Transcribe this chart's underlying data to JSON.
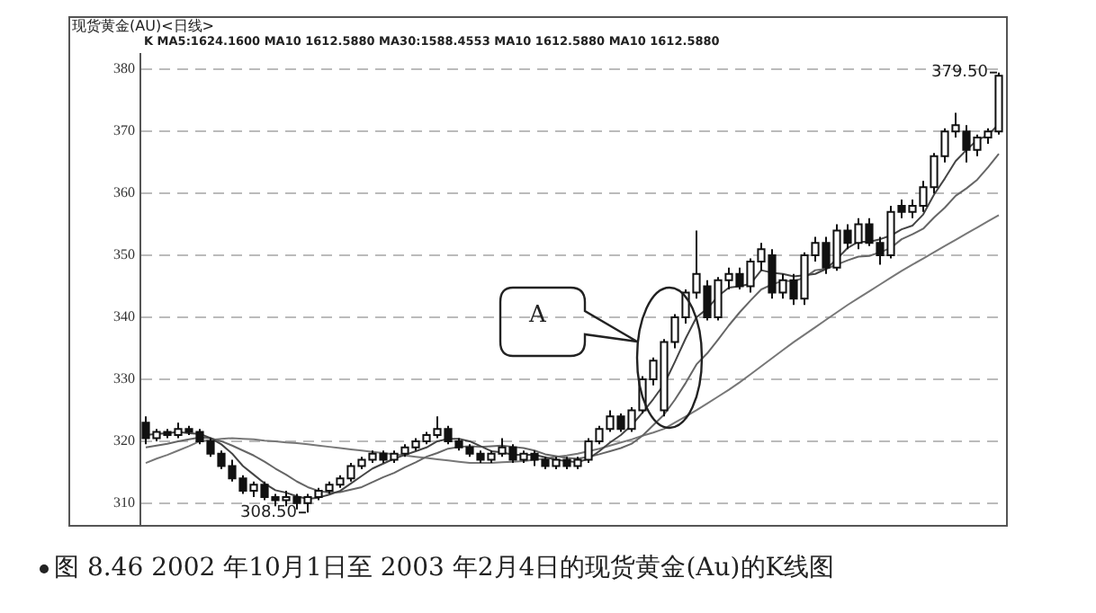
{
  "chart_data": {
    "type": "candlestick",
    "title": "现货黄金(AU)<日线>",
    "categories": [
      null,
      null,
      null,
      null,
      null,
      null,
      null,
      null,
      null,
      null,
      null,
      null,
      null,
      null,
      null,
      null,
      null,
      null,
      null,
      null,
      null,
      null,
      null,
      null,
      null,
      null,
      null,
      null,
      null,
      null,
      null,
      null,
      null,
      null,
      null,
      null,
      null,
      null,
      null,
      null,
      null,
      null,
      null,
      null,
      null,
      null,
      null,
      null,
      null,
      null,
      null,
      null,
      null,
      null,
      null,
      null,
      null,
      null,
      null,
      null,
      null,
      null,
      null,
      null,
      null,
      null,
      null,
      null,
      null,
      null,
      null,
      null,
      null,
      null,
      null,
      null,
      null,
      null,
      null,
      null
    ],
    "ohlc": [
      [
        323,
        324,
        319.5,
        320.5
      ],
      [
        320.5,
        322,
        320,
        321.5
      ],
      [
        321.5,
        322,
        320.5,
        321
      ],
      [
        321,
        323,
        320.5,
        322
      ],
      [
        322,
        322.5,
        321,
        321.5
      ],
      [
        321.5,
        322,
        319.5,
        320
      ],
      [
        320,
        320.5,
        317.5,
        318
      ],
      [
        318,
        318.5,
        315.5,
        316
      ],
      [
        316,
        317,
        313.5,
        314
      ],
      [
        314,
        314.5,
        311.5,
        312
      ],
      [
        312,
        313.5,
        311,
        313
      ],
      [
        313,
        313.5,
        310.5,
        311
      ],
      [
        311,
        311.5,
        309.5,
        310.5
      ],
      [
        310.5,
        312,
        309.5,
        311
      ],
      [
        311,
        311.5,
        309,
        310
      ],
      [
        310,
        311.5,
        308.5,
        311
      ],
      [
        311,
        312.5,
        310.5,
        312
      ],
      [
        312,
        313.5,
        311.5,
        313
      ],
      [
        313,
        314.5,
        312.5,
        314
      ],
      [
        314,
        316.5,
        313.5,
        316
      ],
      [
        316,
        317.5,
        315.5,
        317
      ],
      [
        317,
        318.5,
        316.5,
        318
      ],
      [
        318,
        318.5,
        316.5,
        317
      ],
      [
        317,
        318.5,
        316.5,
        318
      ],
      [
        318,
        319.5,
        317.5,
        319
      ],
      [
        319,
        320.5,
        318.5,
        320
      ],
      [
        320,
        321.5,
        319.5,
        321
      ],
      [
        321,
        324,
        320.5,
        322
      ],
      [
        322,
        322.5,
        319.5,
        320
      ],
      [
        320,
        320.5,
        318.5,
        319
      ],
      [
        319,
        319.5,
        317.5,
        318
      ],
      [
        318,
        318.5,
        316.5,
        317
      ],
      [
        317,
        318.5,
        316.5,
        318
      ],
      [
        318,
        320.5,
        317.5,
        319
      ],
      [
        319,
        319.5,
        316.5,
        317
      ],
      [
        317,
        318.5,
        316.5,
        318
      ],
      [
        318,
        318.5,
        316,
        317
      ],
      [
        317,
        317.5,
        315.5,
        316
      ],
      [
        316,
        317.5,
        315.5,
        317
      ],
      [
        317,
        317.5,
        315.5,
        316
      ],
      [
        316,
        317.5,
        315.5,
        317
      ],
      [
        317,
        320.5,
        316.5,
        320
      ],
      [
        320,
        322.5,
        319.5,
        322
      ],
      [
        322,
        325,
        321.5,
        324
      ],
      [
        324,
        324.5,
        321.5,
        322
      ],
      [
        322,
        325.5,
        321.5,
        325
      ],
      [
        325,
        330.5,
        324.5,
        330
      ],
      [
        330,
        333.5,
        329,
        333
      ],
      [
        325,
        336.5,
        324,
        336
      ],
      [
        336,
        340.5,
        335,
        340
      ],
      [
        340,
        344.5,
        339,
        344
      ],
      [
        344,
        354,
        343,
        347
      ],
      [
        345,
        346,
        339.5,
        340
      ],
      [
        340,
        346.5,
        339.5,
        346
      ],
      [
        346,
        348,
        344.5,
        347
      ],
      [
        347,
        348,
        344.5,
        345
      ],
      [
        345,
        349.5,
        344,
        349
      ],
      [
        349,
        352,
        347.5,
        351
      ],
      [
        350,
        351,
        343,
        344
      ],
      [
        344,
        347,
        343,
        346
      ],
      [
        346,
        347,
        342,
        343
      ],
      [
        343,
        350.5,
        342,
        350
      ],
      [
        350,
        353,
        349,
        352
      ],
      [
        352,
        353,
        347,
        348
      ],
      [
        348,
        355,
        347.5,
        354
      ],
      [
        354,
        355,
        351,
        352
      ],
      [
        352,
        356,
        351,
        355
      ],
      [
        355,
        356,
        351.5,
        352
      ],
      [
        352,
        353,
        348.5,
        350
      ],
      [
        350,
        358,
        349.5,
        357
      ],
      [
        358,
        359,
        356,
        357
      ],
      [
        357,
        359,
        356,
        358
      ],
      [
        358,
        362,
        357,
        361
      ],
      [
        361,
        366.5,
        360,
        366
      ],
      [
        366,
        370.5,
        365,
        370
      ],
      [
        370,
        373,
        369,
        371
      ],
      [
        370,
        371,
        365,
        367
      ],
      [
        367,
        369.5,
        366,
        369
      ],
      [
        369,
        370.5,
        368,
        370
      ],
      [
        370,
        379.5,
        369.5,
        379
      ]
    ],
    "series": [
      {
        "type": "line",
        "color": "#444444",
        "values": [
          321,
          321.2,
          321.3,
          321.5,
          321.3,
          321.2,
          320.5,
          319.5,
          318,
          316,
          314.6,
          313.2,
          312.1,
          311.7,
          311.1,
          310.7,
          310.9,
          311.4,
          312,
          313.2,
          314.4,
          315.6,
          316.4,
          317.2,
          317.8,
          318.4,
          319,
          320,
          320.4,
          320.4,
          320,
          319.2,
          318.4,
          318.2,
          317.8,
          317.8,
          317.8,
          317.4,
          317,
          316.8,
          316.6,
          317.2,
          318.4,
          319.8,
          321,
          322.6,
          324.6,
          326.8,
          329.2,
          332.8,
          336.6,
          340,
          341.4,
          343.4,
          344.8,
          345,
          345.4,
          347.6,
          347.2,
          347,
          346.6,
          346.8,
          347,
          347.8,
          349.4,
          351.2,
          352.2,
          352.2,
          352.6,
          353.2,
          354.2,
          354.8,
          356.6,
          359.8,
          362.4,
          365.2,
          367,
          368.6,
          369.4,
          371.2
        ]
      },
      {
        "type": "line",
        "color": "#666666",
        "values": [
          319,
          319.3,
          319.6,
          320,
          320.3,
          320.6,
          320.5,
          320,
          319.3,
          318.5,
          317.7,
          316.7,
          315.6,
          314.6,
          313.5,
          312.6,
          312,
          311.7,
          311.8,
          312.2,
          312.6,
          313.4,
          314.2,
          314.9,
          315.8,
          316.6,
          317.5,
          318.1,
          318.8,
          319.1,
          319.2,
          319.1,
          319.2,
          319.3,
          319.1,
          318.9,
          318.5,
          317.9,
          317.6,
          317.3,
          317.2,
          317.5,
          317.9,
          318.4,
          318.9,
          319.6,
          320.9,
          322.6,
          324.3,
          326.7,
          329.4,
          332.4,
          334.2,
          336.4,
          338.7,
          340.8,
          342.7,
          344.5,
          345.3,
          345.9,
          345.8,
          346.4,
          347.6,
          347.8,
          348.5,
          349.2,
          349.8,
          349.9,
          350.5,
          351.2,
          352.6,
          353.4,
          354.3,
          356.1,
          357.7,
          359.6,
          360.8,
          362.2,
          364.2,
          366.4
        ]
      },
      {
        "type": "line",
        "color": "#777777",
        "values": [
          316.5,
          317.2,
          317.8,
          318.5,
          319.2,
          320,
          320.2,
          320.4,
          320.5,
          320.4,
          320.3,
          320.1,
          320,
          319.8,
          319.7,
          319.5,
          319.3,
          319.1,
          318.9,
          318.7,
          318.5,
          318.3,
          318.1,
          317.9,
          317.7,
          317.5,
          317.3,
          317.1,
          316.9,
          316.7,
          316.5,
          316.5,
          316.5,
          316.6,
          316.7,
          316.8,
          317,
          317.2,
          317.5,
          317.7,
          318,
          318.4,
          318.8,
          319.3,
          319.8,
          320.3,
          320.9,
          321.4,
          322,
          323,
          324,
          325,
          326.1,
          327.2,
          328.3,
          329.5,
          330.8,
          332.1,
          333.4,
          334.7,
          336,
          337.2,
          338.4,
          339.6,
          340.8,
          342,
          343.1,
          344.2,
          345.3,
          346.4,
          347.5,
          348.5,
          349.5,
          350.5,
          351.5,
          352.5,
          353.5,
          354.5,
          355.5,
          356.5
        ]
      }
    ],
    "ylim": [
      306.5,
      382.5
    ],
    "yticks": [
      310,
      320,
      330,
      340,
      350,
      360,
      370,
      380
    ],
    "grid": "y",
    "tick_labels": "y",
    "annotations": [
      "K MA5:1624.1600 MA10 1612.5880 MA30:1588.4553 MA10 1612.5880 MA10 1612.5880",
      "379.50",
      "308.50",
      "A",
      "图 8.46  2002 年10月1日至 2003 年2月4日的现货黄金(Au)的K线图"
    ]
  }
}
